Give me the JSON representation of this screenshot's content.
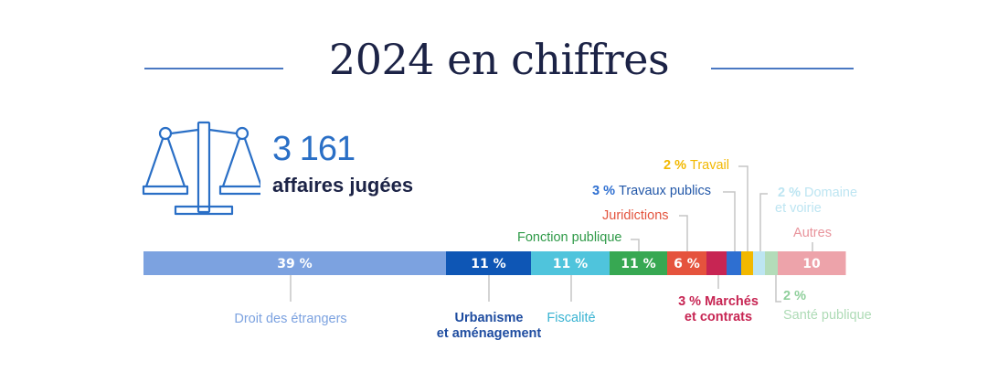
{
  "title": "2024 en chiffres",
  "headline": {
    "number": "3 161",
    "label": "affaires jugées"
  },
  "colors": {
    "title": "#1c2346",
    "rule": "#4a78c2",
    "number": "#2a6fc6",
    "leader": "#c5c5c5"
  },
  "chart_data": {
    "type": "bar",
    "orientation": "horizontal-stacked",
    "unit": "%",
    "categories": [
      "Droit des étrangers",
      "Urbanisme et aménagement",
      "Fiscalité",
      "Fonction publique",
      "Juridictions",
      "Marchés et contrats",
      "Travaux publics",
      "Travail",
      "Domaine et voirie",
      "Santé publique",
      "Autres"
    ],
    "segments": [
      {
        "category": "Droit des étrangers",
        "value": 39,
        "label": "39 %",
        "color": "#7ca2e0",
        "annotation": {
          "pct": "",
          "text": "Droit des étrangers",
          "text2": "",
          "color": "#7ca2e0",
          "pct_color": ""
        }
      },
      {
        "category": "Urbanisme et aménagement",
        "value": 11,
        "label": "11 %",
        "color": "#0e56b5",
        "annotation": {
          "pct": "",
          "text": "Urbanisme",
          "text2": "et aménagement",
          "color": "#1e4ca0",
          "pct_color": ""
        }
      },
      {
        "category": "Fiscalité",
        "value": 11,
        "label": "11 %",
        "color": "#4fc4dc",
        "annotation": {
          "pct": "",
          "text": "Fiscalité",
          "text2": "",
          "color": "#38b3d2",
          "pct_color": ""
        }
      },
      {
        "category": "Fonction publique",
        "value": 11,
        "label": "11 %",
        "color": "#37a852",
        "annotation": {
          "pct": "",
          "text": "Fonction publique",
          "text2": "",
          "color": "#2f9a48",
          "pct_color": ""
        }
      },
      {
        "category": "Juridictions",
        "value": 6,
        "label": "6 %",
        "color": "#e5533d",
        "annotation": {
          "pct": "",
          "text": "Juridictions",
          "text2": "",
          "color": "#e3533d",
          "pct_color": ""
        }
      },
      {
        "category": "Marchés et contrats",
        "value": 3,
        "label": "",
        "color": "#c72553",
        "annotation": {
          "pct": "3 %",
          "text": "Marchés",
          "text2": "et contrats",
          "color": "#c72553",
          "pct_color": "#c72553"
        }
      },
      {
        "category": "Travaux publics",
        "value": 3,
        "label": "",
        "color": "#2e6fd1",
        "annotation": {
          "pct": "3 %",
          "text": "Travaux publics",
          "text2": "",
          "color": "#2257a8",
          "pct_color": "#2e6fd1"
        }
      },
      {
        "category": "Travail",
        "value": 2,
        "label": "",
        "color": "#f2b800",
        "annotation": {
          "pct": "2 %",
          "text": "Travail",
          "text2": "",
          "color": "#f2b800",
          "pct_color": "#f2b800"
        }
      },
      {
        "category": "Domaine et voirie",
        "value": 2,
        "label": "",
        "color": "#bde5f2",
        "annotation": {
          "pct": "2 %",
          "text": "Domaine",
          "text2": "et voirie",
          "color": "#bde5f2",
          "pct_color": "#bde5f2"
        }
      },
      {
        "category": "Santé publique",
        "value": 2,
        "label": "",
        "color": "#b3dcb9",
        "annotation": {
          "pct": "2 %",
          "text": "Santé publique",
          "text2": "",
          "color": "#aedbb6",
          "pct_color": "#8fcf9b"
        }
      },
      {
        "category": "Autres",
        "value": 10,
        "label": "10",
        "color": "#eda3aa",
        "annotation": {
          "pct": "",
          "text": "Autres",
          "text2": "",
          "color": "#e8949c",
          "pct_color": ""
        }
      }
    ]
  }
}
